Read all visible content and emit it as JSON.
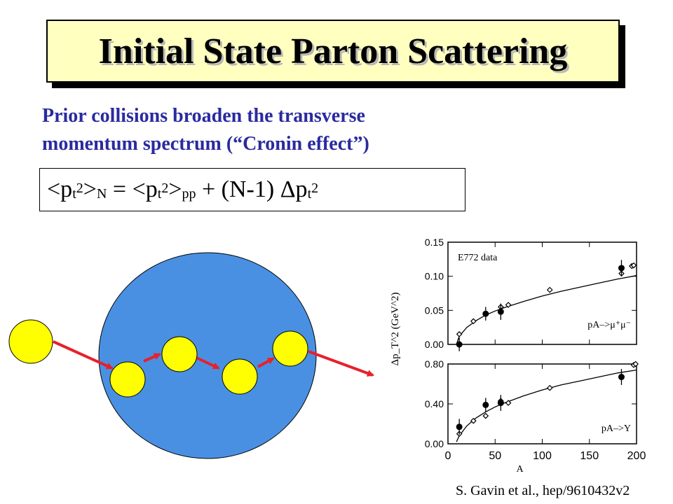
{
  "slide": {
    "title": "Initial State Parton Scattering",
    "subtitle_line1": "Prior collisions broaden the transverse",
    "subtitle_line2": "momentum spectrum (“Cronin effect”)",
    "formula": {
      "lhs_open": "<p",
      "t": "t",
      "two": "2",
      "gt": ">",
      "n": "N",
      "equals": " = <p",
      "pp": "pp",
      "plus": " + (N-1)  Δp"
    },
    "citation": "S. Gavin et al., hep/9610432v2"
  },
  "colors": {
    "title_bg": "#ffffc0",
    "subtitle": "#2a2aa0",
    "nucleus": "#4a90e2",
    "parton": "#ffff00",
    "arrow": "#e8202a"
  },
  "chart_data": {
    "type": "scatter",
    "xlabel": "A",
    "ylabel": "Δp_T^2 (GeV^2)",
    "xlim": [
      0,
      200
    ],
    "x_ticks": [
      "0",
      "50",
      "100",
      "150",
      "200"
    ],
    "panels": [
      {
        "name": "pA->μ+μ-",
        "annotation": "E772 data",
        "label": "pA–>μ⁺μ⁻",
        "ylim": [
          0,
          0.15
        ],
        "y_ticks": [
          "0.00",
          "0.05",
          "0.10",
          "0.15"
        ],
        "data_points": [
          {
            "x": 12,
            "y": 0.0
          },
          {
            "x": 40,
            "y": 0.045
          },
          {
            "x": 56,
            "y": 0.048
          },
          {
            "x": 184,
            "y": 0.112
          }
        ],
        "data_errors": [
          0.01,
          0.01,
          0.012,
          0.012
        ],
        "model_points": [
          {
            "x": 12,
            "y": 0.015
          },
          {
            "x": 27,
            "y": 0.034
          },
          {
            "x": 40,
            "y": 0.045
          },
          {
            "x": 56,
            "y": 0.055
          },
          {
            "x": 64,
            "y": 0.058
          },
          {
            "x": 108,
            "y": 0.08
          },
          {
            "x": 184,
            "y": 0.104
          },
          {
            "x": 195,
            "y": 0.115
          },
          {
            "x": 197,
            "y": 0.116
          }
        ],
        "curve": {
          "x": [
            9,
            12,
            20,
            30,
            40,
            50,
            60,
            80,
            100,
            120,
            140,
            160,
            180,
            200
          ],
          "y": [
            0.0,
            0.012,
            0.025,
            0.035,
            0.043,
            0.049,
            0.054,
            0.063,
            0.071,
            0.078,
            0.084,
            0.09,
            0.096,
            0.101
          ]
        }
      },
      {
        "name": "pA->Y",
        "annotation": "",
        "label": "pA–>Y",
        "ylim": [
          0,
          0.8
        ],
        "y_ticks": [
          "0.00",
          "0.40",
          "0.80"
        ],
        "data_points": [
          {
            "x": 12,
            "y": 0.17
          },
          {
            "x": 40,
            "y": 0.39
          },
          {
            "x": 56,
            "y": 0.41
          },
          {
            "x": 184,
            "y": 0.67
          }
        ],
        "data_errors": [
          0.08,
          0.07,
          0.08,
          0.08
        ],
        "model_points": [
          {
            "x": 12,
            "y": 0.1
          },
          {
            "x": 27,
            "y": 0.23
          },
          {
            "x": 40,
            "y": 0.28
          },
          {
            "x": 56,
            "y": 0.43
          },
          {
            "x": 64,
            "y": 0.41
          },
          {
            "x": 108,
            "y": 0.56
          },
          {
            "x": 197,
            "y": 0.79
          },
          {
            "x": 199,
            "y": 0.8
          }
        ],
        "curve": {
          "x": [
            9,
            12,
            20,
            30,
            40,
            50,
            60,
            80,
            100,
            120,
            140,
            160,
            180,
            200
          ],
          "y": [
            0.02,
            0.08,
            0.18,
            0.26,
            0.32,
            0.37,
            0.41,
            0.48,
            0.54,
            0.59,
            0.63,
            0.67,
            0.71,
            0.74
          ]
        }
      }
    ]
  }
}
